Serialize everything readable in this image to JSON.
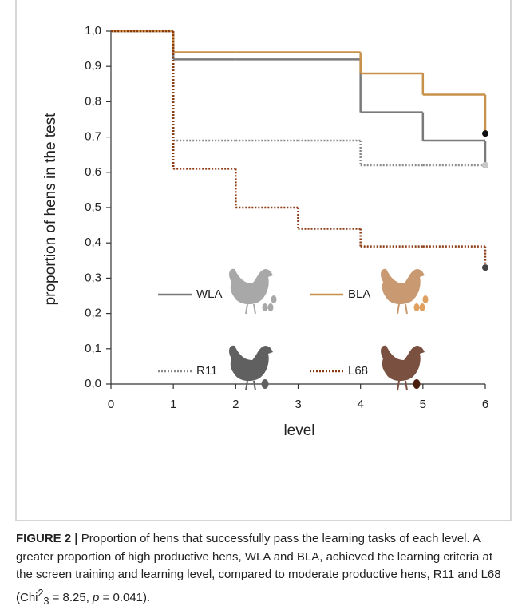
{
  "chart_data": {
    "type": "step",
    "xlabel": "level",
    "ylabel": "proportion of hens in the test",
    "x": [
      0,
      1,
      2,
      3,
      4,
      5,
      6
    ],
    "xlim": [
      0,
      6
    ],
    "xticks": [
      0,
      1,
      2,
      3,
      4,
      5,
      6
    ],
    "ylim": [
      0,
      1
    ],
    "yticks": [
      {
        "value": 0,
        "label": "0,0"
      },
      {
        "value": 0.1,
        "label": "0,1"
      },
      {
        "value": 0.2,
        "label": "0,2"
      },
      {
        "value": 0.3,
        "label": "0,3"
      },
      {
        "value": 0.4,
        "label": "0,4"
      },
      {
        "value": 0.5,
        "label": "0,5"
      },
      {
        "value": 0.6,
        "label": "0,6"
      },
      {
        "value": 0.7,
        "label": "0,7"
      },
      {
        "value": 0.8,
        "label": "0,8"
      },
      {
        "value": 0.9,
        "label": "0,9"
      },
      {
        "value": 1.0,
        "label": "1,0"
      }
    ],
    "series": [
      {
        "name": "WLA",
        "color": "#7a7a7a",
        "dashed": false,
        "marker_color": "#7a7a7a",
        "values": [
          1.0,
          0.92,
          0.92,
          0.92,
          0.77,
          0.69,
          0.62
        ]
      },
      {
        "name": "BLA",
        "color": "#c8914a",
        "dashed": false,
        "marker_color": "#111111",
        "values": [
          1.0,
          0.94,
          0.94,
          0.94,
          0.88,
          0.82,
          0.71
        ]
      },
      {
        "name": "R11",
        "color": "#8a8a8a",
        "dashed": true,
        "marker_color": "#c8c8c8",
        "values": [
          1.0,
          0.69,
          0.69,
          0.69,
          0.62,
          0.62,
          0.62
        ]
      },
      {
        "name": "L68",
        "color": "#8b3a12",
        "dashed": true,
        "marker_color": "#444444",
        "values": [
          1.0,
          0.61,
          0.5,
          0.44,
          0.39,
          0.39,
          0.33
        ]
      }
    ]
  },
  "caption": {
    "label": "FIGURE 2 |",
    "text": "Proportion of hens that successfully pass the learning tasks of each level. A greater proportion of high productive hens, WLA and BLA, achieved the learning criteria at the screen training and learning level, compared to moderate productive hens, R11 and L68 (Chi",
    "sup": "2",
    "sub": "3",
    "text2": " = 8.25, ",
    "p": "p",
    "text3": " = 0.041)."
  }
}
